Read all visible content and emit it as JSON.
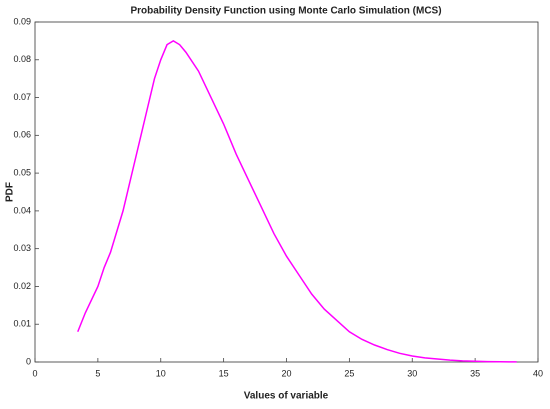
{
  "chart_data": {
    "type": "line",
    "title": "Probability Density Function using Monte Carlo Simulation (MCS)",
    "x_label": "Values of variable",
    "y_label": "PDF",
    "xlim": [
      0,
      40
    ],
    "xticks": [
      0,
      5,
      10,
      15,
      20,
      25,
      30,
      35,
      40
    ],
    "ylim": [
      0,
      0.09
    ],
    "yticks": [
      0,
      0.01,
      0.02,
      0.03,
      0.04,
      0.05,
      0.06,
      0.07,
      0.08,
      0.09
    ],
    "grid": false,
    "series": [
      {
        "color": "#ff00ff",
        "x": [
          3.4,
          4,
          5,
          5.5,
          6,
          7,
          8,
          9,
          9.5,
          10,
          10.5,
          11,
          11.5,
          12,
          13,
          14,
          15,
          16,
          17,
          18,
          19,
          20,
          21,
          22,
          23,
          24,
          25,
          26,
          27,
          28,
          29,
          30,
          31,
          32,
          33,
          34,
          35,
          36,
          37,
          38.3
        ],
        "values": [
          0.008,
          0.013,
          0.02,
          0.025,
          0.029,
          0.04,
          0.054,
          0.068,
          0.075,
          0.08,
          0.084,
          0.085,
          0.084,
          0.082,
          0.077,
          0.07,
          0.063,
          0.055,
          0.048,
          0.041,
          0.034,
          0.028,
          0.023,
          0.018,
          0.014,
          0.011,
          0.008,
          0.006,
          0.0045,
          0.0033,
          0.0023,
          0.0016,
          0.0011,
          0.0008,
          0.0005,
          0.0003,
          0.0002,
          0.0001,
          5e-05,
          2e-05
        ]
      }
    ]
  }
}
